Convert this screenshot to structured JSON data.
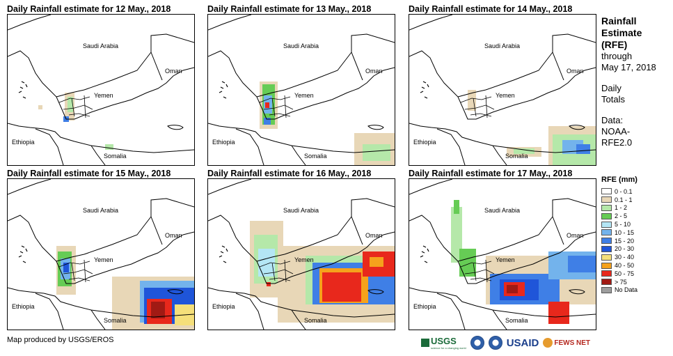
{
  "panels": [
    {
      "title": "Daily Rainfall estimate for 12 May., 2018"
    },
    {
      "title": "Daily Rainfall estimate for 13 May., 2018"
    },
    {
      "title": "Daily Rainfall estimate for 14 May., 2018"
    },
    {
      "title": "Daily Rainfall estimate for 15 May., 2018"
    },
    {
      "title": "Daily Rainfall estimate for 16 May., 2018"
    },
    {
      "title": "Daily Rainfall estimate for 17 May., 2018"
    }
  ],
  "map_labels": {
    "saudi": "Saudi Arabia",
    "oman": "Oman",
    "yemen": "Yemen",
    "ethiopia": "Ethiopia",
    "somalia": "Somalia"
  },
  "sidebar": {
    "title_lines": [
      "Rainfall",
      "Estimate",
      "(RFE)"
    ],
    "through": "through",
    "date": "May 17, 2018",
    "daily": "Daily",
    "totals": "Totals",
    "data_label": "Data:",
    "source_1": "NOAA-",
    "source_2": "RFE2.0"
  },
  "legend": {
    "title": "RFE (mm)",
    "items": [
      {
        "label": "0 - 0.1",
        "color": "#ffffff"
      },
      {
        "label": "0.1 - 1",
        "color": "#e8d7b7"
      },
      {
        "label": "1 - 2",
        "color": "#b5e8a9"
      },
      {
        "label": "2 - 5",
        "color": "#66cc55"
      },
      {
        "label": "5 - 10",
        "color": "#b4e6f5"
      },
      {
        "label": "10 - 15",
        "color": "#73b3ec"
      },
      {
        "label": "15 - 20",
        "color": "#3f7fe6"
      },
      {
        "label": "20 - 30",
        "color": "#1f55d9"
      },
      {
        "label": "30 - 40",
        "color": "#f5df7a"
      },
      {
        "label": "40 - 50",
        "color": "#f5a21c"
      },
      {
        "label": "50 - 75",
        "color": "#e8281c"
      },
      {
        "label": "> 75",
        "color": "#a11a14"
      },
      {
        "label": "No Data",
        "color": "#9e9e9e"
      }
    ]
  },
  "credit": "Map produced by USGS/EROS",
  "logos": {
    "usgs": "USGS",
    "usgs_sub": "science for a changing world",
    "usaid": "USAID",
    "fews": "FEWS NET"
  }
}
